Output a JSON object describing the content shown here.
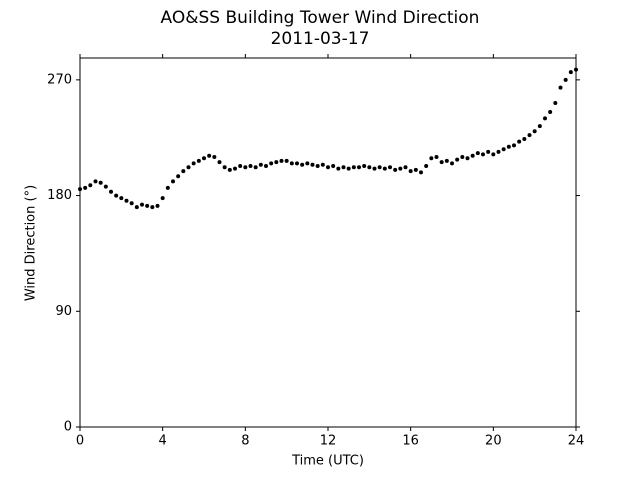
{
  "chart_data": {
    "type": "scatter",
    "title": "AO&SS Building Tower Wind Direction",
    "subtitle": "2011-03-17",
    "x_label": "Time (UTC)",
    "y_label": "Wind Direction (°)",
    "color": "#000000",
    "xlim": [
      0,
      24
    ],
    "xticks": [
      0,
      4,
      8,
      12,
      16,
      20,
      24
    ],
    "ylim": [
      0,
      287
    ],
    "yticks": [
      0,
      90,
      180,
      270
    ],
    "x": [
      0,
      0.25,
      0.5,
      0.75,
      1,
      1.25,
      1.5,
      1.75,
      2,
      2.25,
      2.5,
      2.75,
      3,
      3.25,
      3.5,
      3.75,
      4,
      4.25,
      4.5,
      4.75,
      5,
      5.25,
      5.5,
      5.75,
      6,
      6.25,
      6.5,
      6.75,
      7,
      7.25,
      7.5,
      7.75,
      8,
      8.25,
      8.5,
      8.75,
      9,
      9.25,
      9.5,
      9.75,
      10,
      10.25,
      10.5,
      10.75,
      11,
      11.25,
      11.5,
      11.75,
      12,
      12.25,
      12.5,
      12.75,
      13,
      13.25,
      13.5,
      13.75,
      14,
      14.25,
      14.5,
      14.75,
      15,
      15.25,
      15.5,
      15.75,
      16,
      16.25,
      16.5,
      16.75,
      17,
      17.25,
      17.5,
      17.75,
      18,
      18.25,
      18.5,
      18.75,
      19,
      19.25,
      19.5,
      19.75,
      20,
      20.25,
      20.5,
      20.75,
      21,
      21.25,
      21.5,
      21.75,
      22,
      22.25,
      22.5,
      22.75,
      23,
      23.25,
      23.5,
      23.75,
      24
    ],
    "values": [
      185,
      186,
      188,
      191,
      190,
      187,
      183,
      180,
      178,
      176,
      174,
      171,
      173,
      172,
      171,
      172,
      178,
      186,
      191,
      195,
      199,
      202,
      205,
      207,
      209,
      211,
      210,
      206,
      202,
      200,
      201,
      203,
      202,
      203,
      202,
      204,
      203,
      205,
      206,
      207,
      207,
      205,
      205,
      204,
      205,
      204,
      203,
      204,
      202,
      203,
      201,
      202,
      201,
      202,
      202,
      203,
      202,
      201,
      202,
      201,
      202,
      200,
      201,
      202,
      199,
      200,
      198,
      203,
      209,
      210,
      206,
      207,
      205,
      208,
      210,
      209,
      211,
      213,
      212,
      214,
      212,
      214,
      216,
      218,
      219,
      222,
      224,
      227,
      230,
      234,
      240,
      245,
      252,
      264,
      270,
      276,
      278
    ]
  }
}
